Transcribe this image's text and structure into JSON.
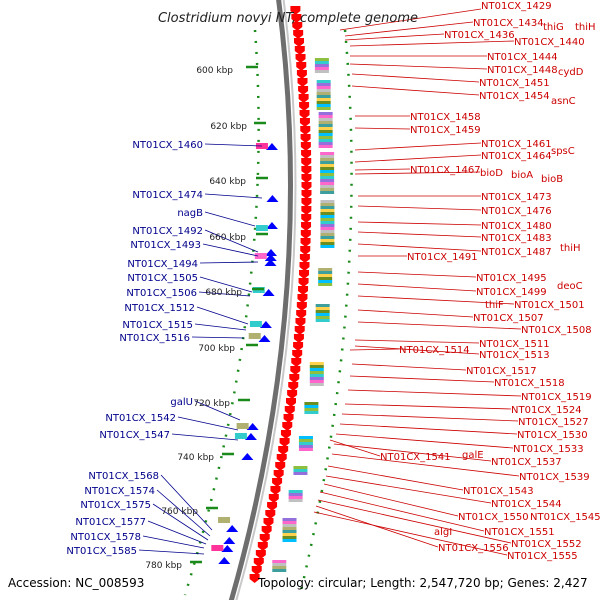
{
  "title": "Clostridium novyi NT, complete genome",
  "footer": {
    "accession": "Accession: NC_008593",
    "topology": "Topology: circular; Length: 2,547,720 bp; Genes: 2,427"
  },
  "colors": {
    "right_label": "#cc0000",
    "left_label": "#00008b",
    "backbone": "#8c8c8c",
    "forward_gene": "#ff0000",
    "reverse_gene": "#0000ff",
    "tick": "#1a8a1a"
  },
  "kbp_ticks": [
    "600 kbp",
    "620 kbp",
    "640 kbp",
    "660 kbp",
    "680 kbp",
    "700 kbp",
    "720 kbp",
    "740 kbp",
    "760 kbp",
    "780 kbp"
  ],
  "right_labels": [
    {
      "text": "NT01CX_1429"
    },
    {
      "text": "NT01CX_1434"
    },
    {
      "text": "thiG"
    },
    {
      "text": "thiH"
    },
    {
      "text": "NT01CX_1436"
    },
    {
      "text": "NT01CX_1440"
    },
    {
      "text": "NT01CX_1444"
    },
    {
      "text": "NT01CX_1448"
    },
    {
      "text": "cydD"
    },
    {
      "text": "NT01CX_1451"
    },
    {
      "text": "NT01CX_1454"
    },
    {
      "text": "asnC"
    },
    {
      "text": "NT01CX_1458"
    },
    {
      "text": "NT01CX_1459"
    },
    {
      "text": "NT01CX_1461"
    },
    {
      "text": "spsC"
    },
    {
      "text": "NT01CX_1464"
    },
    {
      "text": "NT01CX_1467"
    },
    {
      "text": "bioD"
    },
    {
      "text": "bioA"
    },
    {
      "text": "bioB"
    },
    {
      "text": "NT01CX_1473"
    },
    {
      "text": "NT01CX_1476"
    },
    {
      "text": "NT01CX_1480"
    },
    {
      "text": "NT01CX_1483"
    },
    {
      "text": "NT01CX_1487"
    },
    {
      "text": "thiH"
    },
    {
      "text": "NT01CX_1491"
    },
    {
      "text": "NT01CX_1495"
    },
    {
      "text": "deoC"
    },
    {
      "text": "NT01CX_1499"
    },
    {
      "text": "thiF"
    },
    {
      "text": "NT01CX_1501"
    },
    {
      "text": "NT01CX_1507"
    },
    {
      "text": "NT01CX_1508"
    },
    {
      "text": "NT01CX_1514"
    },
    {
      "text": "NT01CX_1511"
    },
    {
      "text": "NT01CX_1513"
    },
    {
      "text": "NT01CX_1517"
    },
    {
      "text": "NT01CX_1518"
    },
    {
      "text": "NT01CX_1519"
    },
    {
      "text": "NT01CX_1524"
    },
    {
      "text": "NT01CX_1527"
    },
    {
      "text": "NT01CX_1530"
    },
    {
      "text": "NT01CX_1533"
    },
    {
      "text": "NT01CX_1541"
    },
    {
      "text": "galE"
    },
    {
      "text": "NT01CX_1537"
    },
    {
      "text": "NT01CX_1539"
    },
    {
      "text": "NT01CX_1543"
    },
    {
      "text": "NT01CX_1544"
    },
    {
      "text": "NT01CX_1550"
    },
    {
      "text": "NT01CX_1545"
    },
    {
      "text": "algI"
    },
    {
      "text": "NT01CX_1551"
    },
    {
      "text": "NT01CX_1552"
    },
    {
      "text": "NT01CX_1556"
    },
    {
      "text": "NT01CX_1555"
    }
  ],
  "left_labels": [
    {
      "text": "NT01CX_1460"
    },
    {
      "text": "NT01CX_1474"
    },
    {
      "text": "nagB"
    },
    {
      "text": "NT01CX_1492"
    },
    {
      "text": "NT01CX_1493"
    },
    {
      "text": "NT01CX_1494"
    },
    {
      "text": "NT01CX_1505"
    },
    {
      "text": "NT01CX_1506"
    },
    {
      "text": "NT01CX_1512"
    },
    {
      "text": "NT01CX_1515"
    },
    {
      "text": "NT01CX_1516"
    },
    {
      "text": "galU"
    },
    {
      "text": "NT01CX_1542"
    },
    {
      "text": "NT01CX_1547"
    },
    {
      "text": "NT01CX_1568"
    },
    {
      "text": "NT01CX_1574"
    },
    {
      "text": "NT01CX_1575"
    },
    {
      "text": "NT01CX_1577"
    },
    {
      "text": "NT01CX_1578"
    },
    {
      "text": "NT01CX_1585"
    }
  ]
}
